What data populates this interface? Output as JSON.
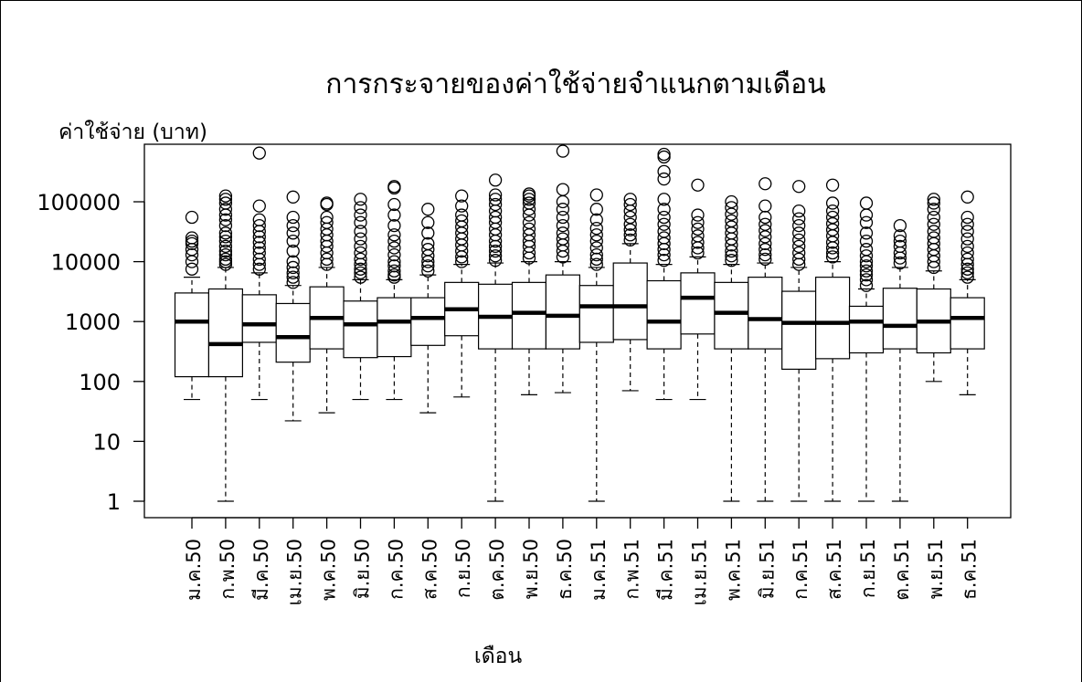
{
  "chart_data": {
    "type": "boxplot",
    "title": "การกระจายของค่าใช้จ่ายจำแนกตามเดือน",
    "ylabel": "ค่าใช้จ่าย (บาท)",
    "xlabel": "เดือน",
    "y_scale": "log",
    "ylim": [
      1,
      700000
    ],
    "y_ticks": [
      {
        "value": 1,
        "label": "1"
      },
      {
        "value": 10,
        "label": "10"
      },
      {
        "value": 100,
        "label": "100"
      },
      {
        "value": 1000,
        "label": "1000"
      },
      {
        "value": 10000,
        "label": "10000"
      },
      {
        "value": 100000,
        "label": "100000"
      }
    ],
    "categories": [
      "ม.ค.50",
      "ก.พ.50",
      "มี.ค.50",
      "เม.ย.50",
      "พ.ค.50",
      "มิ.ย.50",
      "ก.ค.50",
      "ส.ค.50",
      "ก.ย.50",
      "ต.ค.50",
      "พ.ย.50",
      "ธ.ค.50",
      "ม.ค.51",
      "ก.พ.51",
      "มี.ค.51",
      "เม.ย.51",
      "พ.ค.51",
      "มิ.ย.51",
      "ก.ค.51",
      "ส.ค.51",
      "ก.ย.51",
      "ต.ค.51",
      "พ.ย.51",
      "ธ.ค.51"
    ],
    "boxes": [
      {
        "min": 50,
        "q1": 120,
        "median": 1000,
        "q3": 3000,
        "max": 5500,
        "outliers": [
          7500,
          10000,
          13000,
          16000,
          20000,
          22000,
          25000,
          55000
        ]
      },
      {
        "min": 1,
        "q1": 120,
        "median": 420,
        "q3": 3500,
        "max": 8000,
        "outliers": [
          9000,
          10000,
          11000,
          13000,
          15000,
          18000,
          22000,
          26000,
          30000,
          40000,
          50000,
          60000,
          75000,
          95000,
          110000,
          125000
        ]
      },
      {
        "min": 50,
        "q1": 450,
        "median": 900,
        "q3": 2800,
        "max": 6500,
        "outliers": [
          7500,
          9000,
          11000,
          14000,
          17000,
          21000,
          26000,
          32000,
          40000,
          50000,
          85000,
          650000
        ]
      },
      {
        "min": 22,
        "q1": 210,
        "median": 550,
        "q3": 2000,
        "max": 4000,
        "outliers": [
          4500,
          5500,
          6500,
          8000,
          10000,
          15000,
          22000,
          30000,
          40000,
          55000,
          120000
        ]
      },
      {
        "min": 30,
        "q1": 350,
        "median": 1150,
        "q3": 3800,
        "max": 8000,
        "outliers": [
          9000,
          11000,
          14000,
          18000,
          22000,
          28000,
          35000,
          45000,
          55000,
          90000,
          95000
        ]
      },
      {
        "min": 50,
        "q1": 250,
        "median": 900,
        "q3": 2200,
        "max": 5000,
        "outliers": [
          5500,
          6500,
          7500,
          9000,
          11000,
          14000,
          18000,
          24000,
          32000,
          45000,
          60000,
          80000,
          110000
        ]
      },
      {
        "min": 50,
        "q1": 260,
        "median": 1000,
        "q3": 2500,
        "max": 5000,
        "outliers": [
          5500,
          6000,
          7000,
          8500,
          10000,
          13000,
          17000,
          22000,
          28000,
          40000,
          60000,
          90000,
          170000,
          180000
        ]
      },
      {
        "min": 30,
        "q1": 400,
        "median": 1150,
        "q3": 2500,
        "max": 6000,
        "outliers": [
          7000,
          8500,
          10000,
          12500,
          16000,
          20000,
          30000,
          45000,
          75000
        ]
      },
      {
        "min": 55,
        "q1": 580,
        "median": 1600,
        "q3": 4500,
        "max": 9000,
        "outliers": [
          10000,
          12000,
          15000,
          19000,
          24000,
          30000,
          38000,
          48000,
          60000,
          85000,
          125000
        ]
      },
      {
        "min": 1,
        "q1": 350,
        "median": 1200,
        "q3": 4200,
        "max": 9500,
        "outliers": [
          10500,
          12500,
          15000,
          18000,
          22000,
          28000,
          35000,
          45000,
          55000,
          70000,
          90000,
          110000,
          130000,
          230000
        ]
      },
      {
        "min": 60,
        "q1": 350,
        "median": 1400,
        "q3": 4500,
        "max": 10000,
        "outliers": [
          11500,
          14000,
          18000,
          22000,
          28000,
          35000,
          45000,
          60000,
          75000,
          95000,
          110000,
          125000,
          135000
        ]
      },
      {
        "min": 65,
        "q1": 350,
        "median": 1250,
        "q3": 6000,
        "max": 10000,
        "outliers": [
          12000,
          15000,
          19000,
          24000,
          30000,
          40000,
          55000,
          75000,
          100000,
          160000,
          700000
        ]
      },
      {
        "min": 1,
        "q1": 450,
        "median": 1800,
        "q3": 4000,
        "max": 8000,
        "outliers": [
          9000,
          11000,
          13000,
          17000,
          22000,
          28000,
          36000,
          50000,
          75000,
          130000
        ]
      },
      {
        "min": 70,
        "q1": 500,
        "median": 1800,
        "q3": 9500,
        "max": 20000,
        "outliers": [
          23000,
          28000,
          34000,
          42000,
          55000,
          70000,
          90000,
          110000
        ]
      },
      {
        "min": 50,
        "q1": 350,
        "median": 1000,
        "q3": 4800,
        "max": 9000,
        "outliers": [
          10500,
          13000,
          16000,
          20000,
          25000,
          32000,
          42000,
          55000,
          75000,
          110000,
          240000,
          320000,
          560000,
          620000
        ]
      },
      {
        "min": 50,
        "q1": 620,
        "median": 2500,
        "q3": 6500,
        "max": 12000,
        "outliers": [
          14000,
          17000,
          21000,
          27000,
          35000,
          45000,
          60000,
          190000
        ]
      },
      {
        "min": 1,
        "q1": 350,
        "median": 1400,
        "q3": 4500,
        "max": 9000,
        "outliers": [
          10500,
          12500,
          15000,
          19000,
          24000,
          30000,
          38000,
          48000,
          62000,
          80000,
          100000
        ]
      },
      {
        "min": 1,
        "q1": 350,
        "median": 1100,
        "q3": 5500,
        "max": 9500,
        "outliers": [
          11000,
          13000,
          16000,
          20000,
          26000,
          33000,
          42000,
          55000,
          85000,
          200000
        ]
      },
      {
        "min": 1,
        "q1": 160,
        "median": 950,
        "q3": 3200,
        "max": 8000,
        "outliers": [
          9000,
          11000,
          14000,
          18000,
          23000,
          30000,
          40000,
          52000,
          70000,
          180000
        ]
      },
      {
        "min": 1,
        "q1": 240,
        "median": 950,
        "q3": 5500,
        "max": 10000,
        "outliers": [
          12000,
          14000,
          17000,
          21000,
          27000,
          34000,
          43000,
          55000,
          70000,
          95000,
          190000
        ]
      },
      {
        "min": 1,
        "q1": 300,
        "median": 1000,
        "q3": 1800,
        "max": 3500,
        "outliers": [
          4000,
          5000,
          6000,
          7000,
          8500,
          10000,
          12500,
          16000,
          22000,
          30000,
          45000,
          60000,
          95000
        ]
      },
      {
        "min": 1,
        "q1": 350,
        "median": 850,
        "q3": 3600,
        "max": 8000,
        "outliers": [
          9500,
          11500,
          14000,
          18000,
          22000,
          27000,
          40000
        ]
      },
      {
        "min": 100,
        "q1": 300,
        "median": 1000,
        "q3": 3500,
        "max": 7000,
        "outliers": [
          8000,
          10000,
          12500,
          16000,
          20000,
          25000,
          32000,
          42000,
          55000,
          75000,
          95000,
          110000
        ]
      },
      {
        "min": 60,
        "q1": 350,
        "median": 1150,
        "q3": 2500,
        "max": 5000,
        "outliers": [
          5500,
          6500,
          7500,
          9000,
          11000,
          14000,
          18000,
          24000,
          32000,
          42000,
          55000,
          120000
        ]
      }
    ]
  }
}
